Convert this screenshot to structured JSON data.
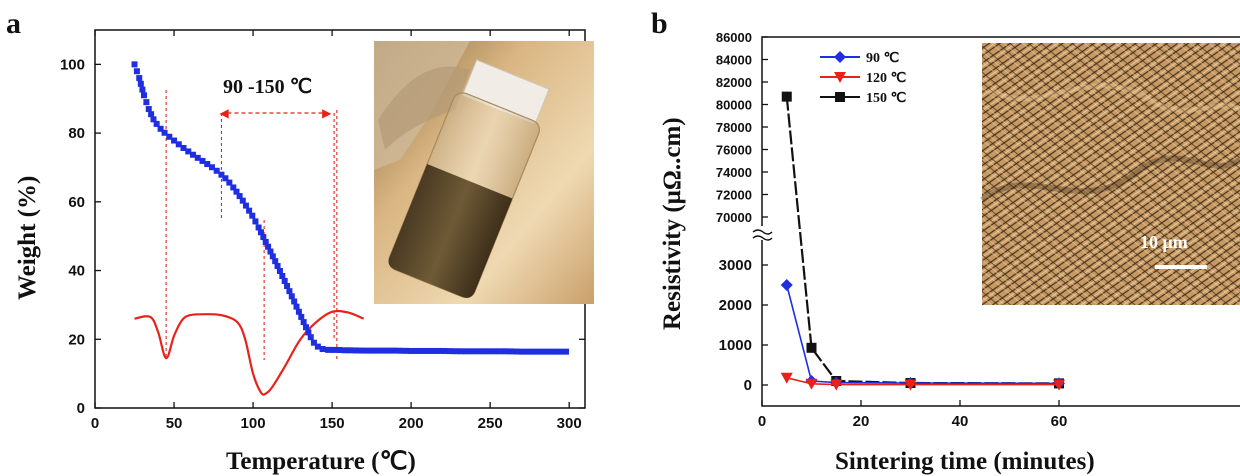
{
  "panel_a": {
    "label": "a",
    "annotation": "90 -150 ℃"
  },
  "panel_b": {
    "label": "b",
    "scale_label": "10 μm"
  },
  "colors": {
    "tga": "#1f2fe0",
    "dtg": "#e8221b",
    "s90": "#1f2fe0",
    "s120": "#e8221b",
    "s150": "#111111"
  },
  "chart_data": [
    {
      "type": "scatter",
      "xlabel": "Temperature (℃)",
      "ylabel": "Weight (%)",
      "xlim": [
        0,
        310
      ],
      "ylim": [
        0,
        110
      ],
      "xticks": [
        0,
        50,
        100,
        150,
        200,
        250,
        300
      ],
      "yticks": [
        0,
        20,
        40,
        60,
        80,
        100
      ],
      "grid": false,
      "series": [
        {
          "style": "blue square markers",
          "x": [
            25,
            28,
            31,
            34,
            37,
            40,
            43,
            46,
            49,
            52,
            55,
            58,
            61,
            64,
            67,
            70,
            73,
            76,
            79,
            82,
            85,
            88,
            91,
            94,
            97,
            100,
            103,
            106,
            109,
            112,
            115,
            118,
            121,
            124,
            127,
            130,
            133,
            136,
            139,
            142,
            145,
            148,
            151,
            154,
            157,
            160,
            170,
            180,
            190,
            200,
            210,
            220,
            230,
            240,
            250,
            260,
            270,
            280,
            290,
            300
          ],
          "y": [
            100,
            96,
            91,
            87,
            84,
            82,
            80.5,
            79.3,
            78.2,
            77.1,
            76,
            75,
            74,
            73.1,
            72.2,
            71.3,
            70.4,
            69.4,
            68.3,
            67.1,
            65.6,
            63.9,
            62,
            60,
            57.8,
            55.6,
            53,
            50.2,
            47.4,
            44.6,
            41.8,
            38.9,
            36,
            33,
            30,
            27,
            24,
            21,
            18.6,
            17.5,
            17,
            16.9,
            16.9,
            16.9,
            16.8,
            16.8,
            16.7,
            16.7,
            16.7,
            16.6,
            16.6,
            16.6,
            16.5,
            16.5,
            16.5,
            16.5,
            16.4,
            16.4,
            16.4,
            16.4
          ]
        },
        {
          "style": "red curve (derivative, no axis scale)",
          "x": [
            25,
            35,
            40,
            45,
            50,
            55,
            60,
            70,
            80,
            90,
            95,
            100,
            105,
            108,
            112,
            120,
            130,
            140,
            150,
            160,
            170
          ],
          "y": [
            26,
            26.5,
            22,
            14.5,
            21,
            25.5,
            27,
            27.3,
            27,
            25,
            20,
            10,
            4.5,
            4.2,
            6,
            12,
            20,
            25,
            28,
            27.8,
            26
          ]
        }
      ],
      "reference_lines_x": [
        45,
        107,
        153
      ]
    },
    {
      "type": "line",
      "xlabel": "Sintering time (minutes)",
      "ylabel": "Resistivity (μΩ..cm)",
      "xlim": [
        0,
        70
      ],
      "xticks": [
        0,
        20,
        40,
        60
      ],
      "yticks_lower": [
        0,
        1000,
        2000,
        3000
      ],
      "yticks_upper": [
        70000,
        72000,
        74000,
        76000,
        78000,
        80000,
        82000,
        84000,
        86000
      ],
      "axis_break": [
        3800,
        70000
      ],
      "legend_placement": "top-left",
      "categories": [
        5,
        10,
        15,
        30,
        60
      ],
      "series": [
        {
          "name": "90 ℃",
          "values": [
            2500,
            100,
            60,
            50,
            40
          ]
        },
        {
          "name": "120 ℃",
          "values": [
            180,
            30,
            10,
            10,
            10
          ]
        },
        {
          "name": "150 ℃",
          "values": [
            80700,
            930,
            100,
            50,
            40
          ]
        }
      ]
    }
  ]
}
